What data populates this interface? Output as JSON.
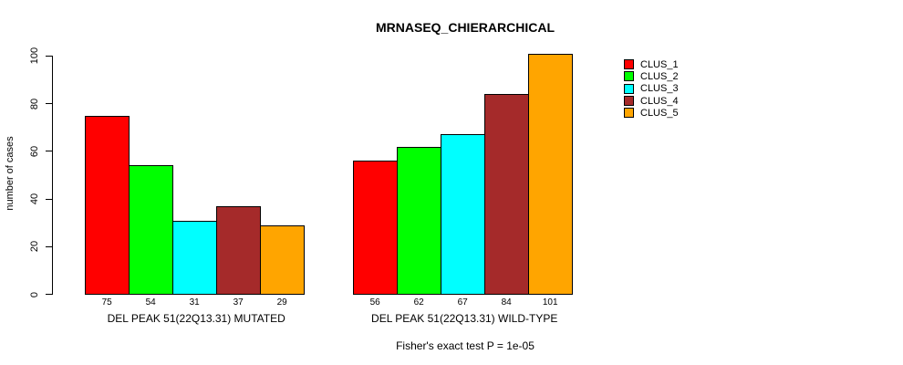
{
  "chart_data": {
    "type": "bar",
    "title": "MRNASEQ_CHIERARCHICAL",
    "ylabel": "number of cases",
    "xlabel": "",
    "ylim": [
      0,
      100
    ],
    "yticks": [
      0,
      20,
      40,
      60,
      80,
      100
    ],
    "grid": false,
    "legend_position": "right",
    "series": [
      {
        "name": "CLUS_1",
        "color": "#FF0000"
      },
      {
        "name": "CLUS_2",
        "color": "#00FF00"
      },
      {
        "name": "CLUS_3",
        "color": "#00FFFF"
      },
      {
        "name": "CLUS_4",
        "color": "#A52A2A"
      },
      {
        "name": "CLUS_5",
        "color": "#FFA500"
      }
    ],
    "groups": [
      {
        "label": "DEL PEAK 51(22Q13.31) MUTATED",
        "values": [
          75,
          54,
          31,
          37,
          29
        ]
      },
      {
        "label": "DEL PEAK 51(22Q13.31) WILD-TYPE",
        "values": [
          56,
          62,
          67,
          84,
          101
        ]
      }
    ],
    "annotation": "Fisher's exact test P = 1e-05"
  }
}
